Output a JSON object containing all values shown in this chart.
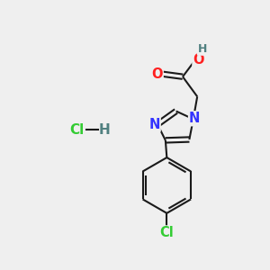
{
  "background_color": "#efefef",
  "bond_color": "#1a1a1a",
  "N_color": "#3333ff",
  "O_color": "#ff2020",
  "Cl_color": "#33cc33",
  "H_color": "#508080",
  "figsize": [
    3.0,
    3.0
  ],
  "dpi": 100,
  "xlim": [
    0,
    10
  ],
  "ylim": [
    0,
    10
  ]
}
